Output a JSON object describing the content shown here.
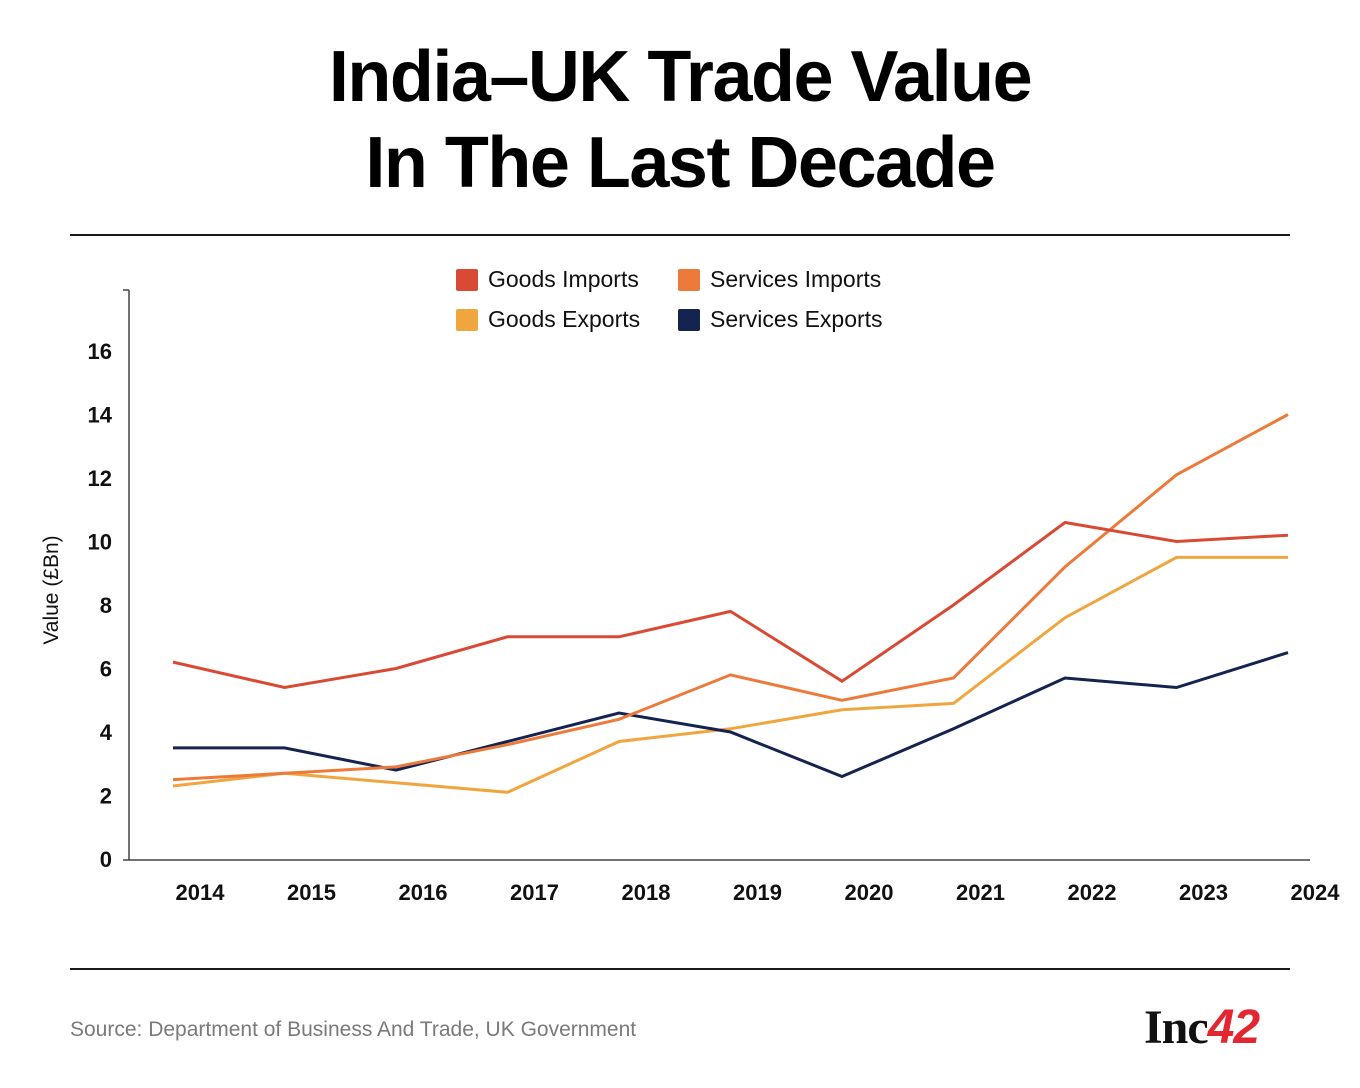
{
  "title_line1": "India–UK Trade Value",
  "title_line2": "In The Last Decade",
  "source": "Source: Department of Business And Trade, UK Government",
  "logo": {
    "text": "Inc",
    "number": "42"
  },
  "chart_data": {
    "type": "line",
    "title": "India–UK Trade Value In The Last Decade",
    "xlabel": "",
    "ylabel": "Value (£Bn)",
    "ylim": [
      0,
      18
    ],
    "yticks": [
      0,
      2,
      4,
      6,
      8,
      10,
      12,
      14,
      16
    ],
    "grid": false,
    "legend_position": "top-center",
    "x": [
      "2014",
      "2015",
      "2016",
      "2017",
      "2018",
      "2019",
      "2020",
      "2021",
      "2022",
      "2023",
      "2024"
    ],
    "series": [
      {
        "name": "Goods Imports",
        "color": "#d94a35",
        "values": [
          6.2,
          5.4,
          6.0,
          7.0,
          7.0,
          7.8,
          5.6,
          8.0,
          10.6,
          10.0,
          10.2
        ]
      },
      {
        "name": "Services Imports",
        "color": "#ec7b3b",
        "values": [
          2.5,
          2.7,
          2.9,
          3.6,
          4.4,
          5.8,
          5.0,
          5.7,
          9.2,
          12.1,
          14.0
        ]
      },
      {
        "name": "Goods Exports",
        "color": "#f0a63e",
        "values": [
          2.3,
          2.7,
          2.4,
          2.1,
          3.7,
          4.1,
          4.7,
          4.9,
          7.6,
          9.5,
          9.5
        ]
      },
      {
        "name": "Services Exports",
        "color": "#14234f",
        "values": [
          3.5,
          3.5,
          2.8,
          3.7,
          4.6,
          4.0,
          2.6,
          4.1,
          5.7,
          5.4,
          6.5
        ]
      }
    ]
  }
}
